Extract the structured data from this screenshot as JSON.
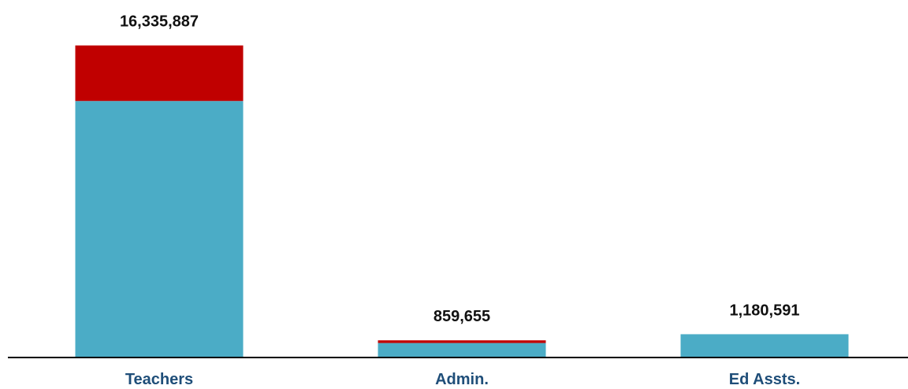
{
  "chart_data": {
    "type": "bar",
    "stacked": true,
    "categories": [
      "Teachers",
      "Admin.",
      "Ed Assts."
    ],
    "series": [
      {
        "values": [
          13420000,
          720000,
          1180591
        ],
        "color": "#4bacc6"
      },
      {
        "values": [
          2915887,
          139655,
          0
        ],
        "color": "#c00000"
      }
    ],
    "data_labels": [
      "16,335,887",
      "859,655",
      "1,180,591"
    ],
    "ylim": [
      0,
      18100000
    ],
    "grid": false,
    "legend": "none",
    "axis_color": "#000000",
    "category_label_color": "#1f4e79"
  }
}
